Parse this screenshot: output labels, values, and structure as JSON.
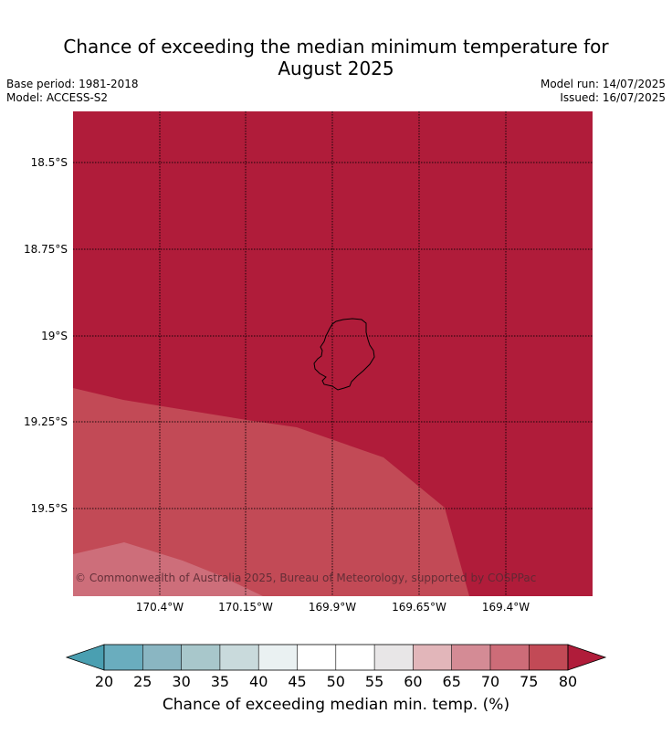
{
  "header": {
    "title_line1": "Chance of exceeding the median minimum temperature for",
    "title_line2": "August 2025",
    "base_period": "Base period: 1981-2018",
    "model": "Model: ACCESS-S2",
    "model_run": "Model run: 14/07/2025",
    "issued": "Issued: 16/07/2025"
  },
  "map": {
    "lat_labels": [
      "18.5°S",
      "18.75°S",
      "19°S",
      "19.25°S",
      "19.5°S"
    ],
    "lon_labels": [
      "170.4°W",
      "170.15°W",
      "169.9°W",
      "169.65°W",
      "169.4°W"
    ],
    "copyright": "© Commonwealth of Australia 2025, Bureau of Meteorology, supported by COSPPac",
    "zone_colors": {
      "gt80": "#b01c3a",
      "75_80": "#c24a56",
      "70_75": "#cd6e7a"
    }
  },
  "colorbar": {
    "ticks": [
      "20",
      "25",
      "30",
      "35",
      "40",
      "45",
      "50",
      "55",
      "60",
      "65",
      "70",
      "75",
      "80"
    ],
    "colors": [
      "#4a9fb1",
      "#6aadbe",
      "#8ab6c2",
      "#a8c7cb",
      "#c9dadc",
      "#eaf1f2",
      "#ffffff",
      "#ffffff",
      "#e8e6e7",
      "#e2b6ba",
      "#d48b95",
      "#cd6c78",
      "#c24a56",
      "#b01c3a"
    ],
    "label": "Chance of exceeding median min. temp. (%)"
  }
}
